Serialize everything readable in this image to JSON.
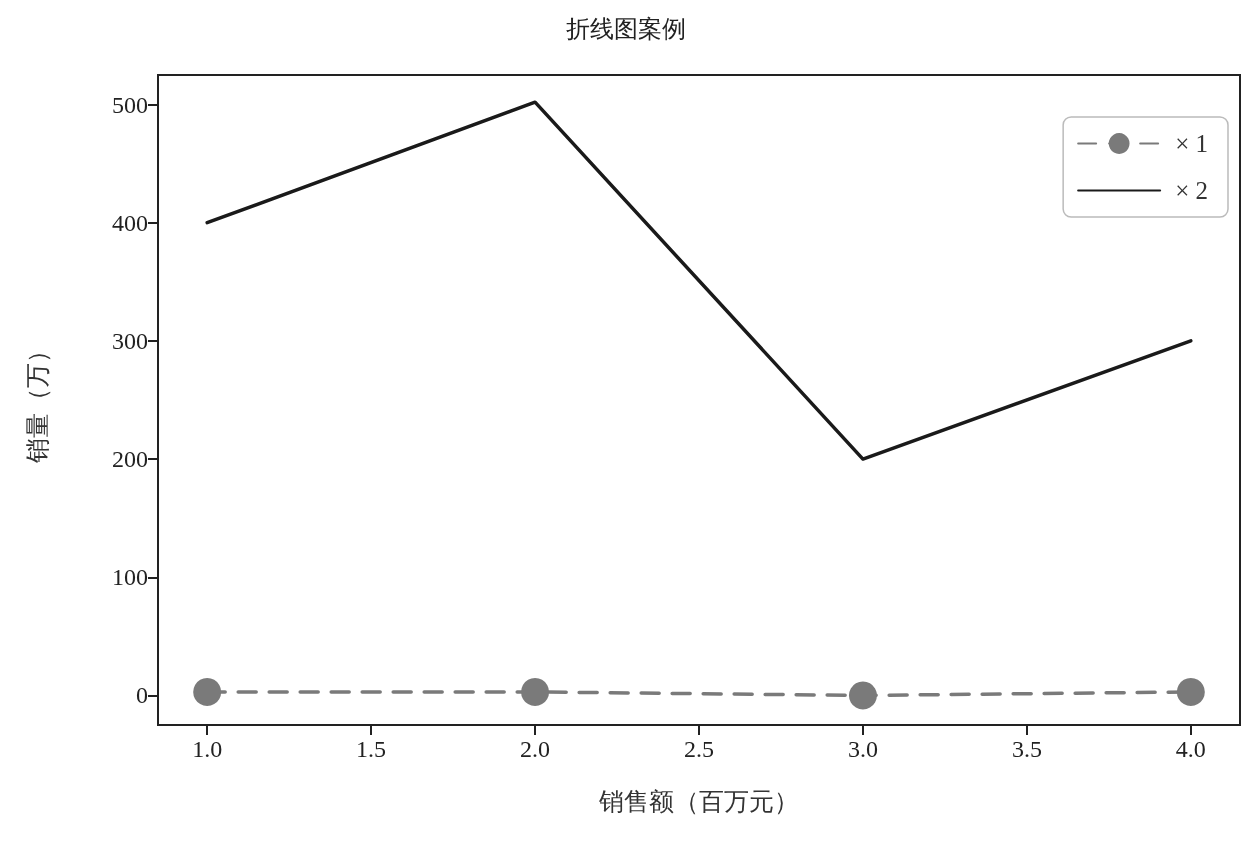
{
  "chart_data": {
    "type": "line",
    "title": "折线图案例",
    "xlabel": "销售额（百万元）",
    "ylabel": "销量（万）",
    "x": [
      1,
      2,
      3,
      4
    ],
    "series": [
      {
        "name": "× 1",
        "color": "#7a7a7a",
        "values": [
          3,
          3,
          0,
          3
        ],
        "marker": "circle",
        "line_style": "dashed"
      },
      {
        "name": "× 2",
        "color": "#1a1a1a",
        "values": [
          400,
          502,
          200,
          300
        ],
        "marker": "none",
        "line_style": "solid"
      }
    ],
    "xlim": [
      0.85,
      4.15
    ],
    "xticks": [
      {
        "value": 1,
        "label": "1.0"
      },
      {
        "value": 1.5,
        "label": "1.5"
      },
      {
        "value": 2,
        "label": "2.0"
      },
      {
        "value": 2.5,
        "label": "2.5"
      },
      {
        "value": 3,
        "label": "3.0"
      },
      {
        "value": 3.5,
        "label": "3.5"
      },
      {
        "value": 4,
        "label": "4.0"
      }
    ],
    "ylim": [
      -25,
      525
    ],
    "yticks": [
      0,
      100,
      200,
      300,
      400,
      500
    ],
    "grid": false,
    "legend": "top right"
  }
}
